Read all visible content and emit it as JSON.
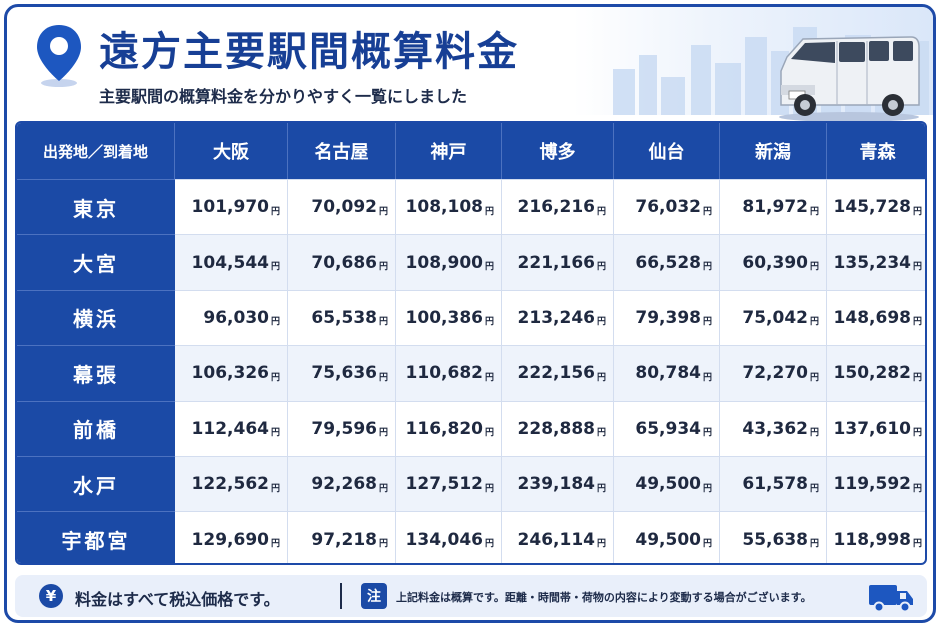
{
  "header": {
    "title": "遠方主要駅間概算料金",
    "subtitle": "主要駅間の概算料金を分かりやすく一覧にしました"
  },
  "table": {
    "corner_label": "出発地／到着地",
    "unit": "円",
    "columns": [
      "大阪",
      "名古屋",
      "神戸",
      "博多",
      "仙台",
      "新潟",
      "青森"
    ],
    "rows": [
      {
        "origin": "東京",
        "values": [
          "101,970",
          "70,092",
          "108,108",
          "216,216",
          "76,032",
          "81,972",
          "145,728"
        ]
      },
      {
        "origin": "大宮",
        "values": [
          "104,544",
          "70,686",
          "108,900",
          "221,166",
          "66,528",
          "60,390",
          "135,234"
        ]
      },
      {
        "origin": "横浜",
        "values": [
          "96,030",
          "65,538",
          "100,386",
          "213,246",
          "79,398",
          "75,042",
          "148,698"
        ]
      },
      {
        "origin": "幕張",
        "values": [
          "106,326",
          "75,636",
          "110,682",
          "222,156",
          "80,784",
          "72,270",
          "150,282"
        ]
      },
      {
        "origin": "前橋",
        "values": [
          "112,464",
          "79,596",
          "116,820",
          "228,888",
          "65,934",
          "43,362",
          "137,610"
        ]
      },
      {
        "origin": "水戸",
        "values": [
          "122,562",
          "92,268",
          "127,512",
          "239,184",
          "49,500",
          "61,578",
          "119,592"
        ]
      },
      {
        "origin": "宇都宮",
        "values": [
          "129,690",
          "97,218",
          "134,046",
          "246,114",
          "49,500",
          "55,638",
          "118,998"
        ]
      }
    ]
  },
  "footer": {
    "yen_symbol": "¥",
    "tax_note": "料金はすべて税込価格です。",
    "note_badge": "注",
    "note_text": "上記料金は概算です。距離・時間帯・荷物の内容により変動する場合がございます。"
  },
  "icons": {
    "pin": "map-pin-icon",
    "van": "van-illustration",
    "truck": "delivery-truck-icon",
    "yen": "yen-coin-icon"
  },
  "colors": {
    "primary": "#1b4aa6",
    "header_text": "#173f95",
    "row_alt": "#eef3fb",
    "footer_bg": "#e9effa"
  }
}
